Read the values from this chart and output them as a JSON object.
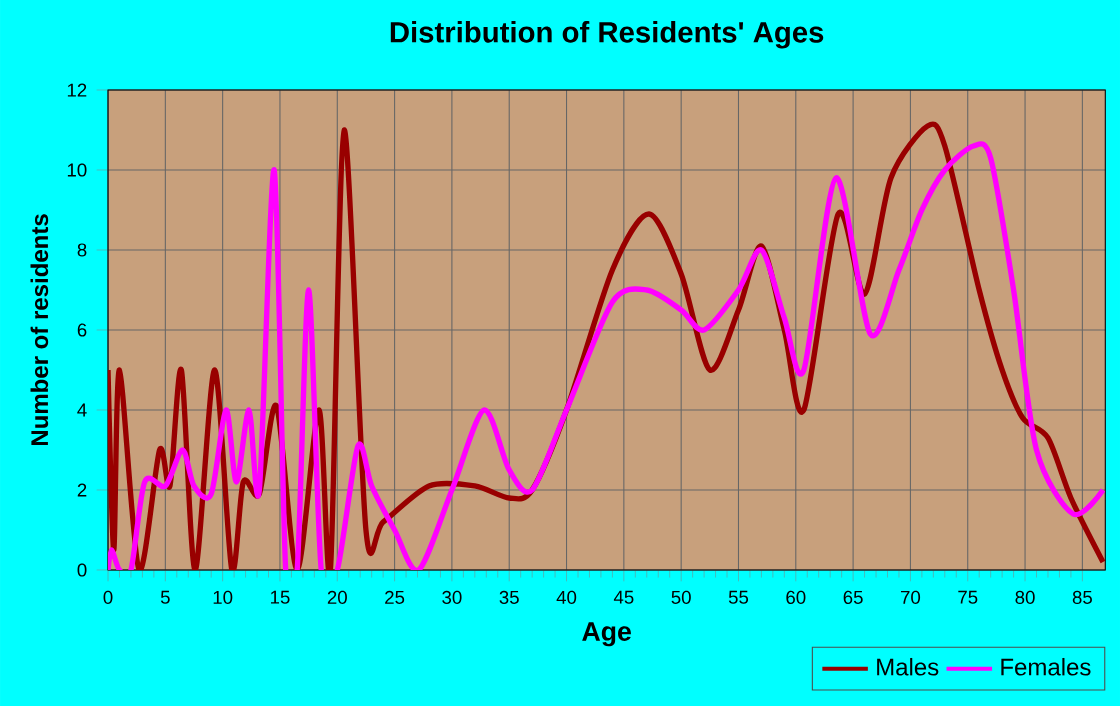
{
  "chart_data": {
    "type": "line",
    "title": "Distribution of Residents' Ages",
    "xlabel": "Age",
    "ylabel": "Number of residents",
    "xlim": [
      0,
      87
    ],
    "ylim": [
      0,
      12
    ],
    "xticks": [
      0,
      5,
      10,
      15,
      20,
      25,
      30,
      35,
      40,
      45,
      50,
      55,
      60,
      65,
      70,
      75,
      80,
      85
    ],
    "yticks": [
      0,
      2,
      4,
      6,
      8,
      10,
      12
    ],
    "grid": true,
    "legend": "bottom right",
    "series": [
      {
        "name": "Males",
        "color": "#990000",
        "x": [
          0,
          0.5,
          1,
          2.7,
          4.5,
          5.4,
          6.4,
          7.6,
          9.3,
          10.8,
          11.8,
          13.2,
          14.7,
          16.5,
          18.4,
          19.4,
          20.6,
          22.5,
          24,
          28,
          32,
          35,
          37,
          40,
          44,
          47.2,
          50,
          52.5,
          55,
          57,
          59,
          60.7,
          63.7,
          66,
          68.3,
          71.5,
          73,
          76,
          78,
          79.8,
          82,
          84,
          86.8
        ],
        "values": [
          5,
          0.5,
          5,
          0,
          3,
          2.1,
          5,
          0,
          5,
          0,
          2.2,
          1.9,
          4.1,
          0,
          4,
          0,
          11,
          1,
          1.2,
          2.1,
          2.1,
          1.8,
          2,
          4,
          7.5,
          8.9,
          7.4,
          5,
          6.5,
          8.1,
          6,
          4,
          8.9,
          6.9,
          9.8,
          11.1,
          10.6,
          7,
          5,
          3.8,
          3.3,
          1.8,
          0.2
        ]
      },
      {
        "name": "Females",
        "color": "#ff00ff",
        "x": [
          0,
          0.3,
          1,
          2,
          3.2,
          5,
          6.5,
          7.5,
          9,
          10.3,
          11.2,
          12.3,
          13.2,
          14.5,
          15.5,
          16.5,
          17.5,
          18.6,
          20,
          21.8,
          23,
          25,
          27.1,
          30,
          32.8,
          35,
          37,
          40,
          44,
          47,
          50,
          52,
          55,
          57,
          59,
          60.7,
          63.5,
          66.5,
          69,
          71,
          73,
          75.5,
          77,
          79,
          81,
          84.2,
          86.8
        ],
        "values": [
          0,
          0.5,
          0,
          0,
          2.2,
          2.1,
          3,
          2.1,
          1.9,
          4,
          2.2,
          4,
          2,
          10,
          0,
          0,
          7,
          0,
          0,
          3.1,
          2.1,
          1,
          0,
          2,
          4,
          2.5,
          2,
          4,
          6.7,
          7,
          6.5,
          6,
          7,
          8,
          6.3,
          5,
          9.8,
          5.9,
          7.5,
          9,
          10,
          10.6,
          10.3,
          7,
          3,
          1.4,
          2
        ]
      }
    ]
  }
}
